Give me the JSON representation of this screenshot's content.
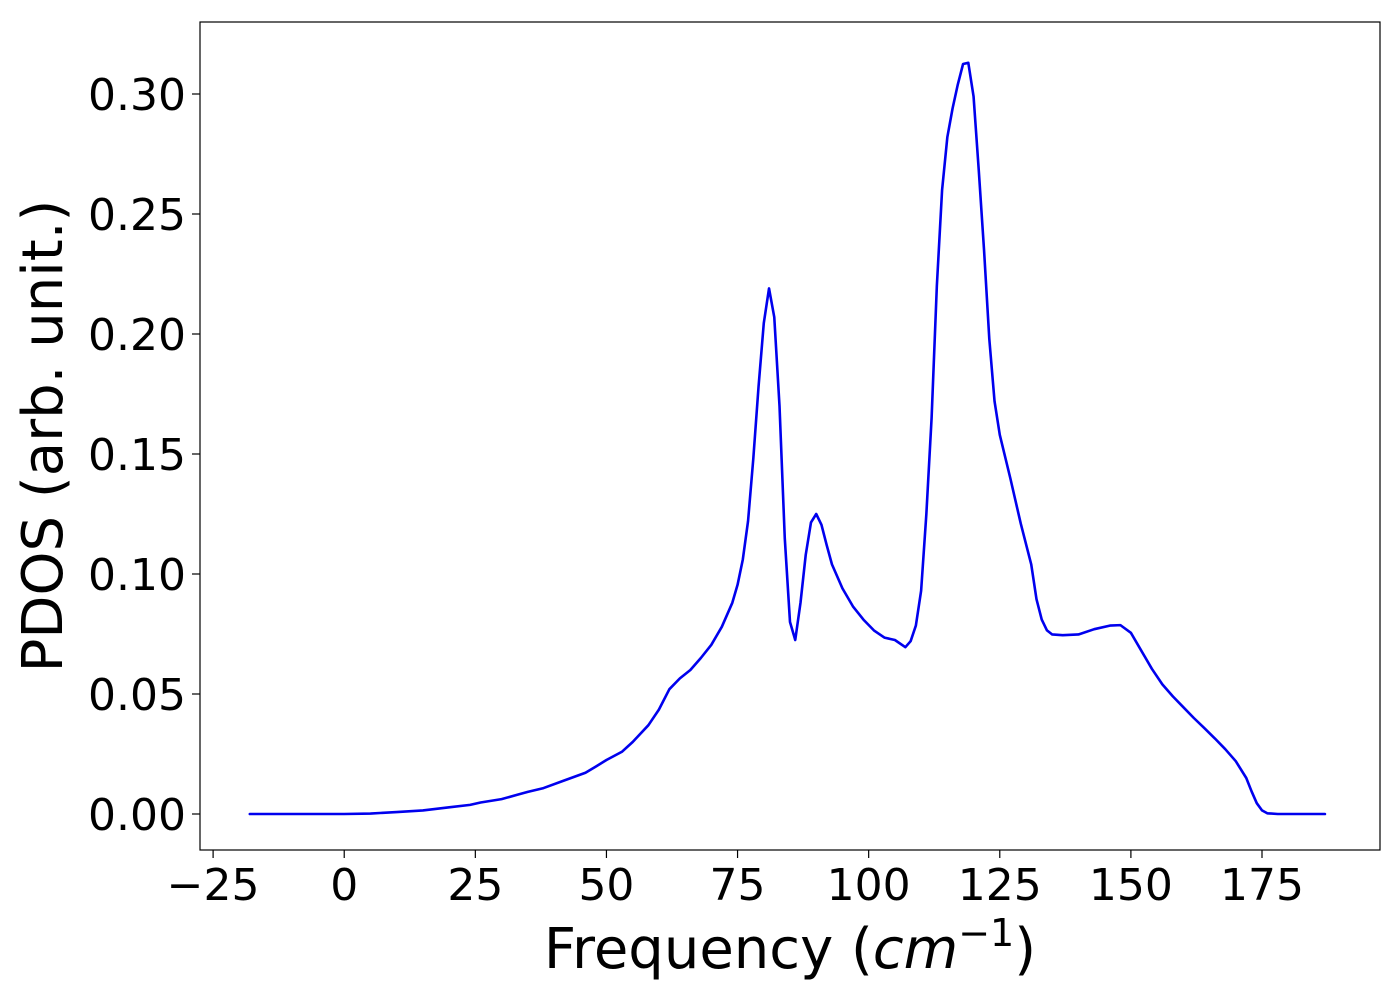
{
  "chart_data": {
    "type": "line",
    "title": "",
    "xlabel_text": "Frequency (",
    "xlabel_math": "cm",
    "xlabel_exp": "−1",
    "xlabel_close": ")",
    "ylabel": "PDOS (arb. unit.)",
    "xlim": [
      -27.5,
      197.5
    ],
    "ylim": [
      -0.015,
      0.33
    ],
    "xticks": [
      -25,
      0,
      25,
      50,
      75,
      100,
      125,
      150,
      175
    ],
    "xtick_labels": [
      "−25",
      "0",
      "25",
      "50",
      "75",
      "100",
      "125",
      "150",
      "175"
    ],
    "yticks": [
      0.0,
      0.05,
      0.1,
      0.15,
      0.2,
      0.25,
      0.3
    ],
    "ytick_labels": [
      "0.00",
      "0.05",
      "0.10",
      "0.15",
      "0.20",
      "0.25",
      "0.30"
    ],
    "grid": false,
    "legend": "none",
    "series": [
      {
        "color": "#0000ee",
        "points": [
          [
            -18,
            0.0
          ],
          [
            -10,
            0.0
          ],
          [
            0,
            0.0
          ],
          [
            5,
            0.0002
          ],
          [
            10,
            0.0008
          ],
          [
            15,
            0.0015
          ],
          [
            20,
            0.0028
          ],
          [
            24,
            0.0038
          ],
          [
            26,
            0.0048
          ],
          [
            30,
            0.0062
          ],
          [
            33,
            0.008
          ],
          [
            35,
            0.0092
          ],
          [
            38,
            0.0108
          ],
          [
            42,
            0.014
          ],
          [
            46,
            0.0172
          ],
          [
            48,
            0.0198
          ],
          [
            50,
            0.0225
          ],
          [
            53,
            0.026
          ],
          [
            55,
            0.03
          ],
          [
            58,
            0.037
          ],
          [
            60,
            0.0435
          ],
          [
            62,
            0.052
          ],
          [
            64,
            0.0565
          ],
          [
            66,
            0.06
          ],
          [
            68,
            0.065
          ],
          [
            70,
            0.0705
          ],
          [
            72,
            0.078
          ],
          [
            74,
            0.088
          ],
          [
            75,
            0.0955
          ],
          [
            76,
            0.106
          ],
          [
            77,
            0.122
          ],
          [
            78,
            0.148
          ],
          [
            79,
            0.178
          ],
          [
            80,
            0.2045
          ],
          [
            81,
            0.219
          ],
          [
            82,
            0.207
          ],
          [
            83,
            0.17
          ],
          [
            84,
            0.115
          ],
          [
            85,
            0.08
          ],
          [
            86,
            0.0725
          ],
          [
            87,
            0.088
          ],
          [
            88,
            0.108
          ],
          [
            89,
            0.1215
          ],
          [
            90,
            0.125
          ],
          [
            91,
            0.1205
          ],
          [
            92,
            0.112
          ],
          [
            93,
            0.104
          ],
          [
            95,
            0.094
          ],
          [
            97,
            0.0865
          ],
          [
            99,
            0.081
          ],
          [
            101,
            0.0765
          ],
          [
            103,
            0.0735
          ],
          [
            105,
            0.0725
          ],
          [
            107,
            0.0695
          ],
          [
            108,
            0.072
          ],
          [
            109,
            0.0785
          ],
          [
            110,
            0.093
          ],
          [
            111,
            0.125
          ],
          [
            112,
            0.165
          ],
          [
            113,
            0.22
          ],
          [
            114,
            0.26
          ],
          [
            115,
            0.282
          ],
          [
            116,
            0.294
          ],
          [
            117,
            0.304
          ],
          [
            118,
            0.3125
          ],
          [
            119,
            0.313
          ],
          [
            120,
            0.299
          ],
          [
            121,
            0.268
          ],
          [
            122,
            0.235
          ],
          [
            123,
            0.198
          ],
          [
            124,
            0.172
          ],
          [
            125,
            0.158
          ],
          [
            127,
            0.14
          ],
          [
            129,
            0.121
          ],
          [
            131,
            0.104
          ],
          [
            132,
            0.0895
          ],
          [
            133,
            0.081
          ],
          [
            134,
            0.0765
          ],
          [
            135,
            0.0748
          ],
          [
            137,
            0.0745
          ],
          [
            140,
            0.0748
          ],
          [
            143,
            0.077
          ],
          [
            146,
            0.0785
          ],
          [
            148,
            0.0787
          ],
          [
            150,
            0.0755
          ],
          [
            152,
            0.068
          ],
          [
            154,
            0.0605
          ],
          [
            156,
            0.054
          ],
          [
            158,
            0.049
          ],
          [
            160,
            0.0445
          ],
          [
            162,
            0.04
          ],
          [
            164,
            0.0358
          ],
          [
            166,
            0.0315
          ],
          [
            168,
            0.027
          ],
          [
            170,
            0.022
          ],
          [
            172,
            0.015
          ],
          [
            173,
            0.0095
          ],
          [
            174,
            0.0045
          ],
          [
            175,
            0.0015
          ],
          [
            176,
            0.0003
          ],
          [
            178,
            0.0
          ],
          [
            183,
            0.0
          ],
          [
            187,
            0.0
          ]
        ]
      }
    ]
  }
}
